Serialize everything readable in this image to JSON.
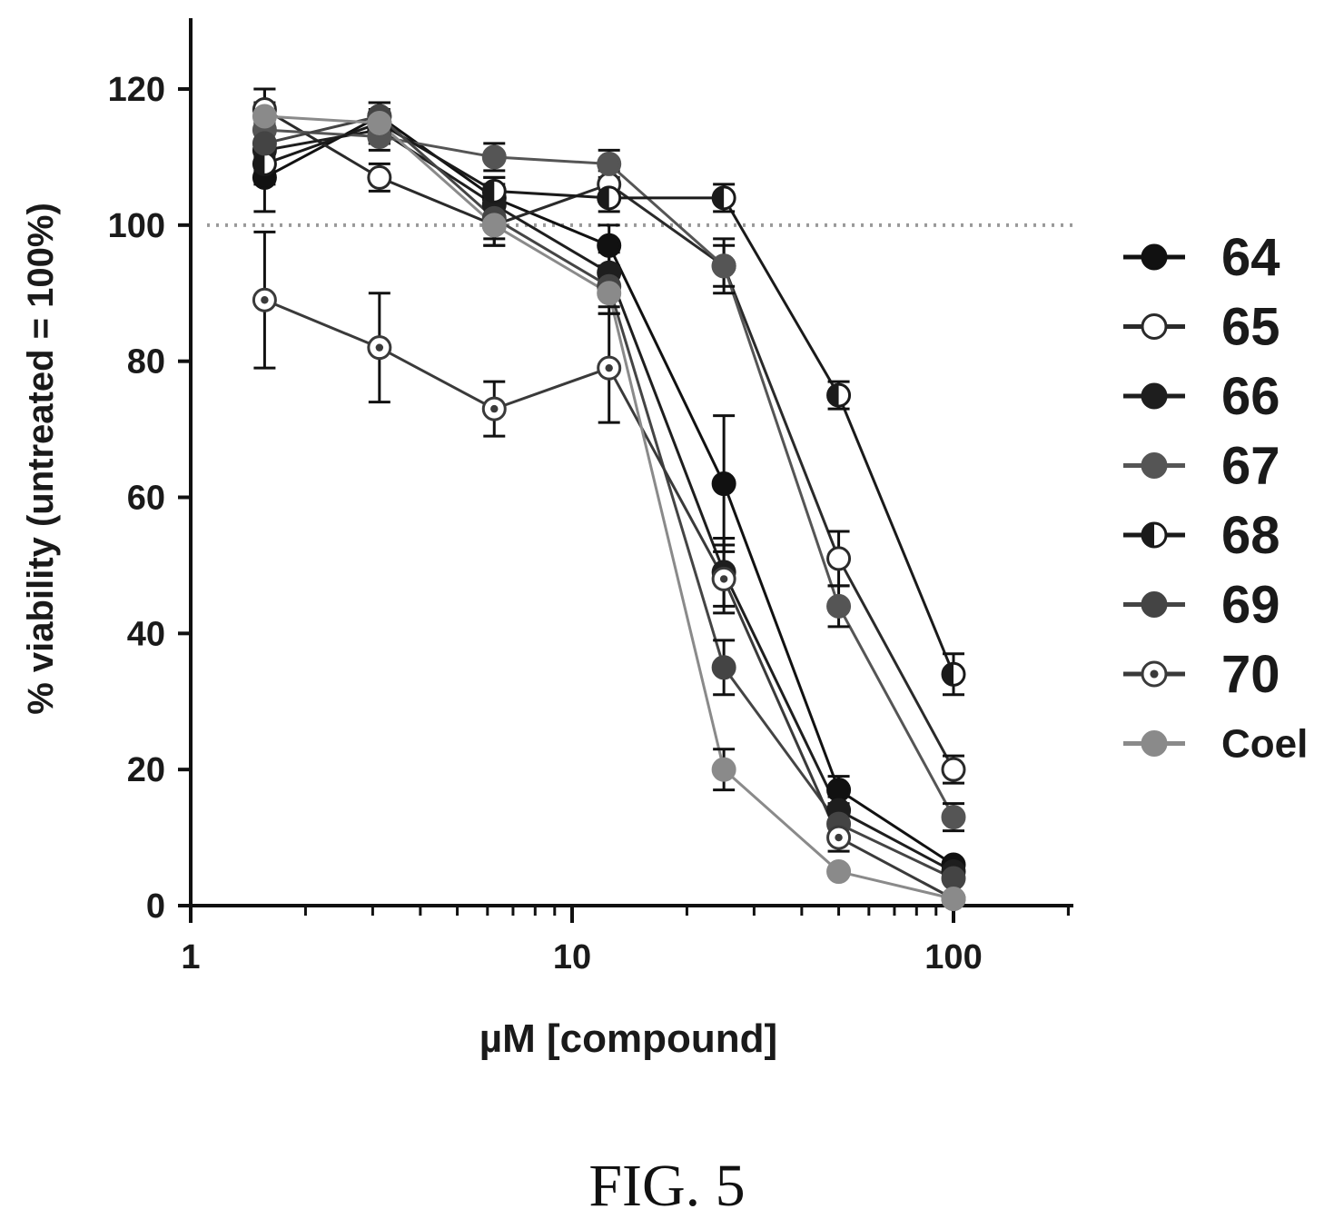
{
  "figure_caption": "FIG. 5",
  "chart_data": {
    "type": "line",
    "title": "",
    "xlabel": "µM [compound]",
    "ylabel": "% viability (untreated = 100%)",
    "xscale": "log",
    "xlim": [
      1,
      200
    ],
    "ylim": [
      0,
      130
    ],
    "xticks": [
      1,
      10,
      100
    ],
    "xtick_labels": [
      "1",
      "10",
      "100"
    ],
    "yticks": [
      0,
      20,
      40,
      60,
      80,
      100,
      120
    ],
    "ytick_labels": [
      "0",
      "20",
      "40",
      "60",
      "80",
      "100",
      "120"
    ],
    "reference_line": {
      "y": 100,
      "style": "dotted"
    },
    "grid": false,
    "legend_position": "right",
    "x": [
      1.5625,
      3.125,
      6.25,
      12.5,
      25,
      50,
      100
    ],
    "series": [
      {
        "name": "64",
        "marker": "filled",
        "color": "#111111",
        "values": [
          107,
          116,
          104,
          97,
          62,
          17,
          6
        ],
        "errors": [
          5,
          2,
          3,
          3,
          10,
          2,
          1
        ]
      },
      {
        "name": "65",
        "marker": "open",
        "color": "#2a2a2a",
        "values": [
          117,
          107,
          100,
          106,
          94,
          51,
          20
        ],
        "errors": [
          3,
          2,
          3,
          2,
          4,
          4,
          2
        ]
      },
      {
        "name": "66",
        "marker": "filled",
        "color": "#1e1e1e",
        "values": [
          111,
          114,
          103,
          93,
          49,
          14,
          5
        ],
        "errors": [
          4,
          2,
          3,
          3,
          5,
          2,
          1
        ]
      },
      {
        "name": "67",
        "marker": "filled",
        "color": "#555555",
        "values": [
          114,
          113,
          110,
          109,
          94,
          44,
          13
        ],
        "errors": [
          4,
          2,
          2,
          2,
          3,
          3,
          2
        ]
      },
      {
        "name": "68",
        "marker": "half",
        "color": "#1a1a1a",
        "values": [
          109,
          115,
          105,
          104,
          104,
          75,
          34
        ],
        "errors": [
          3,
          2,
          2,
          2,
          2,
          2,
          3
        ]
      },
      {
        "name": "69",
        "marker": "filled",
        "color": "#444444",
        "values": [
          112,
          116,
          101,
          91,
          35,
          12,
          4
        ],
        "errors": [
          4,
          2,
          3,
          3,
          4,
          2,
          1
        ]
      },
      {
        "name": "70",
        "marker": "dotted-circle",
        "color": "#3a3a3a",
        "values": [
          89,
          82,
          73,
          79,
          48,
          10,
          1
        ],
        "errors": [
          10,
          8,
          4,
          8,
          5,
          2,
          1
        ]
      },
      {
        "name": "Coel",
        "marker": "filled",
        "color": "#8a8a8a",
        "values": [
          116,
          115,
          100,
          90,
          20,
          5,
          1
        ],
        "errors": [
          4,
          3,
          3,
          3,
          3,
          1,
          1
        ]
      }
    ]
  }
}
